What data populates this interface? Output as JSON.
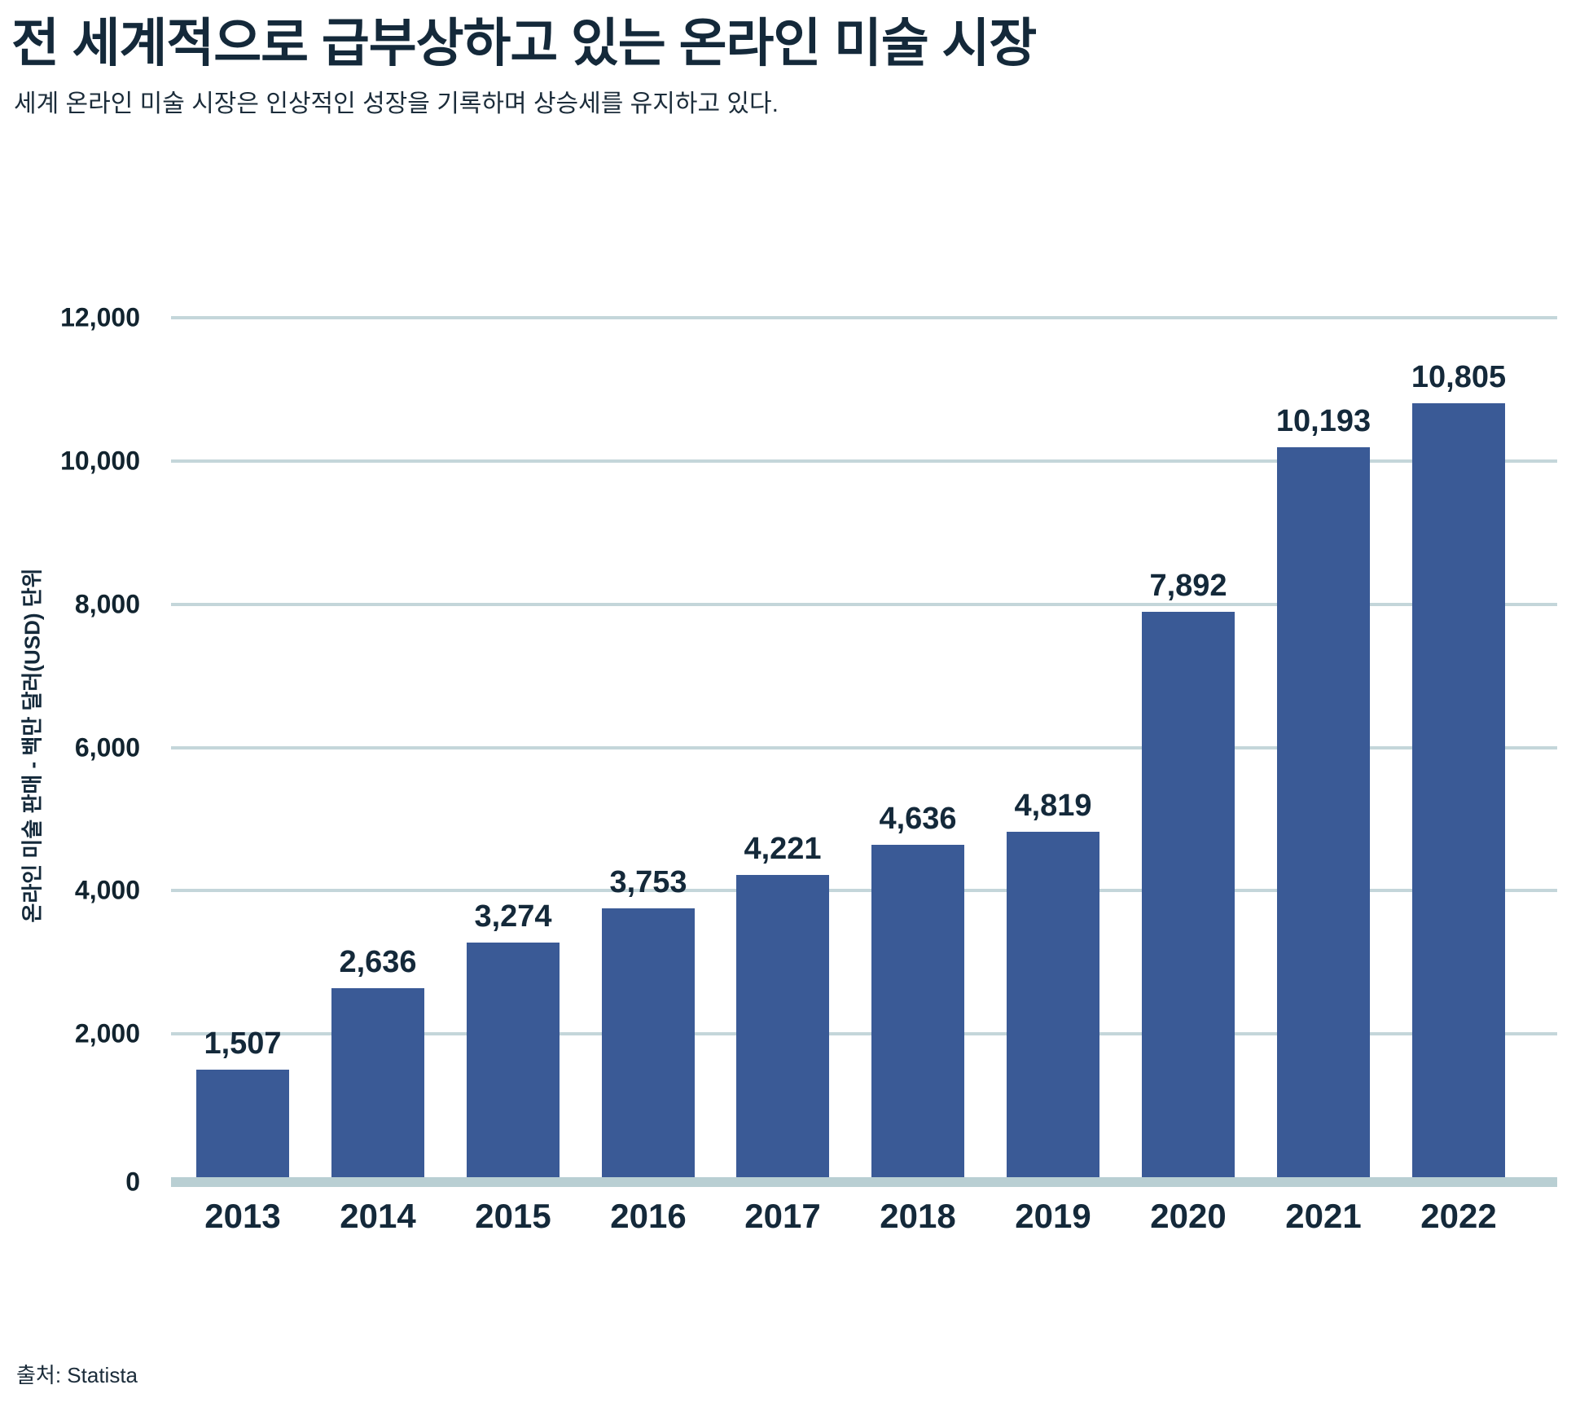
{
  "header": {
    "title": "전 세계적으로 급부상하고 있는 온라인 미술 시장",
    "subtitle": "세계 온라인 미술 시장은 인상적인 성장을 기록하며 상승세를 유지하고 있다."
  },
  "footer": {
    "source": "출처: Statista"
  },
  "chart_data": {
    "type": "bar",
    "title": "전 세계적으로 급부상하고 있는 온라인 미술 시장",
    "subtitle": "세계 온라인 미술 시장은 인상적인 성장을 기록하며 상승세를 유지하고 있다.",
    "categories": [
      "2013",
      "2014",
      "2015",
      "2016",
      "2017",
      "2018",
      "2019",
      "2020",
      "2021",
      "2022"
    ],
    "values": [
      1507,
      2636,
      3274,
      3753,
      4221,
      4636,
      4819,
      7892,
      10193,
      10805
    ],
    "value_labels": [
      "1,507",
      "2,636",
      "3,274",
      "3,753",
      "4,221",
      "4,636",
      "4,819",
      "7,892",
      "10,193",
      "10,805"
    ],
    "xlabel": "",
    "ylabel": "온라인 미술 판매 - 백만 달러(USD) 단위",
    "ylim": [
      0,
      12000
    ],
    "ytick_step": 2000,
    "ytick_labels": [
      "12,000",
      "10,000",
      "8,000",
      "6,000",
      "4,000",
      "2,000",
      "0"
    ],
    "grid": true,
    "legend": "none",
    "source": "출처: Statista",
    "colors": {
      "bar": "#3a5a96",
      "gridline": "#c4d6da",
      "baseline": "#b9cfd3",
      "text_dark": "#14293a"
    }
  }
}
